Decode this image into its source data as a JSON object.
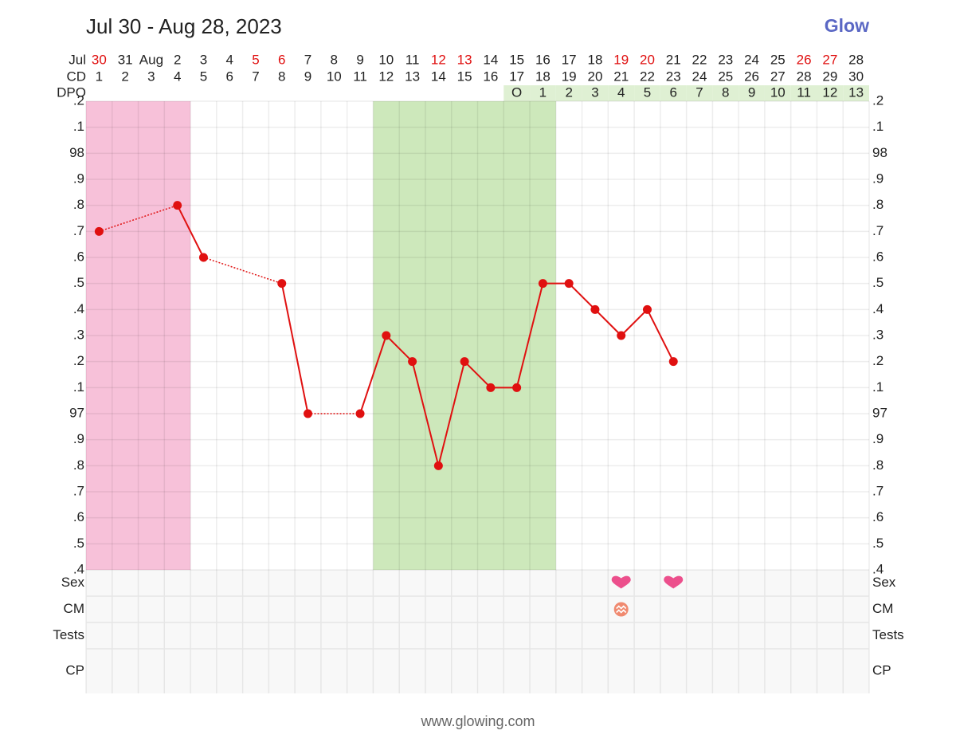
{
  "chart_data": {
    "type": "line",
    "title": "Jul 30 - Aug 28, 2023",
    "logo": "Glow",
    "footer": "www.glowing.com",
    "month_label": "Jul",
    "cd_label": "CD",
    "dpo_label": "DPO",
    "categories": [
      "30",
      "31",
      "Aug",
      "2",
      "3",
      "4",
      "5",
      "6",
      "7",
      "8",
      "9",
      "10",
      "11",
      "12",
      "13",
      "14",
      "15",
      "16",
      "17",
      "18",
      "19",
      "20",
      "21",
      "22",
      "23",
      "24",
      "25",
      "26",
      "27",
      "28"
    ],
    "weekend": [
      true,
      false,
      false,
      false,
      false,
      false,
      true,
      true,
      false,
      false,
      false,
      false,
      false,
      true,
      true,
      false,
      false,
      false,
      false,
      false,
      true,
      true,
      false,
      false,
      false,
      false,
      false,
      true,
      true,
      false
    ],
    "weekend_color": "#e01010",
    "cycle_days": [
      1,
      2,
      3,
      4,
      5,
      6,
      7,
      8,
      9,
      10,
      11,
      12,
      13,
      14,
      15,
      16,
      17,
      18,
      19,
      20,
      21,
      22,
      23,
      24,
      25,
      26,
      27,
      28,
      29,
      30
    ],
    "dpo": [
      null,
      null,
      null,
      null,
      null,
      null,
      null,
      null,
      null,
      null,
      null,
      null,
      null,
      null,
      null,
      null,
      "O",
      1,
      2,
      3,
      4,
      5,
      6,
      7,
      8,
      9,
      10,
      11,
      12,
      13
    ],
    "dpo_color": "#dff0d3",
    "period_days": [
      1,
      4
    ],
    "period_color": "#f7c1d9",
    "fertile_days": [
      12,
      18
    ],
    "fertile_color": "#cde8bb",
    "series": [
      {
        "name": "Temperature",
        "color": "#e01010",
        "values": [
          97.7,
          null,
          null,
          97.8,
          97.6,
          null,
          null,
          97.5,
          97.0,
          null,
          97.0,
          97.3,
          97.2,
          96.8,
          97.2,
          97.1,
          97.1,
          97.5,
          97.5,
          97.4,
          97.3,
          97.4,
          97.2,
          null,
          null,
          null,
          null,
          null,
          null,
          null
        ]
      }
    ],
    "ylim": [
      96.4,
      98.2
    ],
    "yticks": [
      {
        "value": 96.4,
        "label": ".4"
      },
      {
        "value": 96.5,
        "label": ".5"
      },
      {
        "value": 96.6,
        "label": ".6"
      },
      {
        "value": 96.7,
        "label": ".7"
      },
      {
        "value": 96.8,
        "label": ".8"
      },
      {
        "value": 96.9,
        "label": ".9"
      },
      97,
      {
        "value": 97.1,
        "label": ".1"
      },
      {
        "value": 97.2,
        "label": ".2"
      },
      {
        "value": 97.3,
        "label": ".3"
      },
      {
        "value": 97.4,
        "label": ".4"
      },
      {
        "value": 97.5,
        "label": ".5"
      },
      {
        "value": 97.6,
        "label": ".6"
      },
      {
        "value": 97.7,
        "label": ".7"
      },
      {
        "value": 97.8,
        "label": ".8"
      },
      {
        "value": 97.9,
        "label": ".9"
      },
      98,
      {
        "value": 98.1,
        "label": ".1"
      },
      {
        "value": 98.2,
        "label": ".2"
      }
    ],
    "grid": true,
    "rows": [
      "Sex",
      "CM",
      "Tests",
      "CP"
    ],
    "sex_days": [
      21,
      23
    ],
    "sex_color": "#ec4f8c",
    "cm_days": [
      21
    ],
    "cm_color": "#f08a70"
  }
}
